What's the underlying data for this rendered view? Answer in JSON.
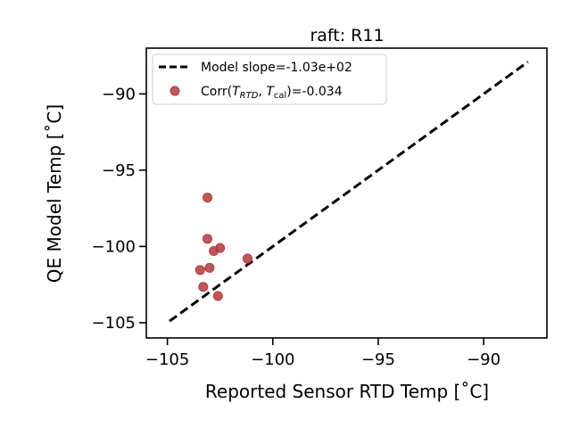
{
  "chart_data": {
    "type": "scatter",
    "title": "raft: R11",
    "xlabel": "Reported Sensor RTD Temp [˚C]",
    "ylabel": "QE Model Temp [˚C]",
    "xlim": [
      -106,
      -87
    ],
    "ylim": [
      -106,
      -87
    ],
    "x_ticks": [
      -105,
      -100,
      -95,
      -90
    ],
    "x_tick_labels": [
      "−105",
      "−100",
      "−95",
      "−90"
    ],
    "y_ticks": [
      -105,
      -100,
      -95,
      -90
    ],
    "y_tick_labels": [
      "−105",
      "−100",
      "−95",
      "−90"
    ],
    "grid": false,
    "legend_position": "top-left",
    "series": [
      {
        "name": "Model slope=-1.03e+02",
        "kind": "line",
        "style": "dashed",
        "color": "#000000",
        "points": [
          [
            -104.9,
            -104.9
          ],
          [
            -87.9,
            -87.9
          ]
        ]
      },
      {
        "name": "Corr(T_RTD, T_cal)=-0.034",
        "kind": "scatter",
        "color": "#b5393b",
        "points": [
          [
            -103.1,
            -96.8
          ],
          [
            -103.1,
            -99.5
          ],
          [
            -102.5,
            -100.1
          ],
          [
            -102.8,
            -100.3
          ],
          [
            -101.2,
            -100.8
          ],
          [
            -103.45,
            -101.55
          ],
          [
            -103.0,
            -101.4
          ],
          [
            -103.3,
            -102.65
          ],
          [
            -102.6,
            -103.25
          ]
        ]
      }
    ],
    "legend": {
      "line_label": "Model slope=-1.03e+02",
      "scatter_label_prefix": "Corr(",
      "scatter_label_t1": "T",
      "scatter_label_t1_sub": "RTD",
      "scatter_label_sep": ", ",
      "scatter_label_t2": "T",
      "scatter_label_t2_sub": "cal",
      "scatter_label_suffix": ")=-0.034"
    }
  }
}
